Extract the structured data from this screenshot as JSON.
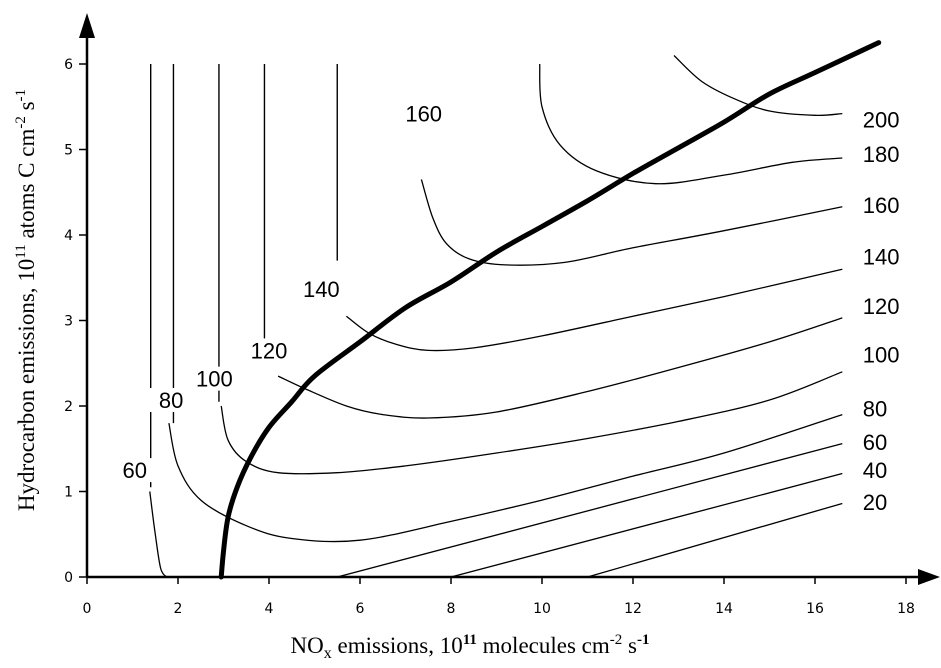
{
  "chart_data": {
    "type": "contour",
    "xlabel": {
      "prefix": "NO",
      "sub": "x",
      "middle": " emissions, 10",
      "exp": "11",
      "suffix": " molecules cm",
      "exp2": "-2",
      "tail": " s",
      "exp3": "-1"
    },
    "ylabel": {
      "prefix": "Hydrocarbon emissions, 10",
      "exp": "11",
      "middle": " atoms C cm",
      "exp2": "-2",
      "tail": " s",
      "exp3": "-1"
    },
    "xlim": [
      0,
      18
    ],
    "ylim": [
      0,
      6
    ],
    "x_ticks": [
      "0",
      "2",
      "4",
      "6",
      "8",
      "10",
      "12",
      "14",
      "16",
      "18"
    ],
    "y_ticks": [
      "0",
      "1",
      "2",
      "3",
      "4",
      "5",
      "6"
    ],
    "contours": [
      {
        "level": "20",
        "points": [
          [
            11,
            0
          ],
          [
            16.6,
            0.86
          ]
        ]
      },
      {
        "level": "40",
        "points": [
          [
            8,
            0
          ],
          [
            16.6,
            1.21
          ]
        ]
      },
      {
        "level": "60",
        "points": [
          [
            5.5,
            0
          ],
          [
            16.6,
            1.56
          ]
        ]
      },
      {
        "level": "60",
        "points": [
          [
            1.38,
            1.0
          ],
          [
            1.5,
            0.5
          ],
          [
            1.62,
            0.1
          ],
          [
            1.75,
            0
          ]
        ]
      },
      {
        "level": "80",
        "points": [
          [
            1.8,
            1.8
          ],
          [
            2.0,
            1.3
          ],
          [
            2.5,
            0.9
          ],
          [
            3.5,
            0.6
          ],
          [
            4.5,
            0.45
          ],
          [
            6,
            0.43
          ],
          [
            8,
            0.65
          ],
          [
            10,
            0.9
          ],
          [
            12,
            1.18
          ],
          [
            14,
            1.45
          ],
          [
            16.6,
            1.9
          ]
        ]
      },
      {
        "level": "100",
        "points": [
          [
            2.95,
            2.0
          ],
          [
            3.1,
            1.6
          ],
          [
            3.5,
            1.35
          ],
          [
            4.2,
            1.22
          ],
          [
            5.5,
            1.22
          ],
          [
            7,
            1.3
          ],
          [
            9,
            1.45
          ],
          [
            11,
            1.62
          ],
          [
            13,
            1.82
          ],
          [
            15,
            2.07
          ],
          [
            16.6,
            2.4
          ]
        ]
      },
      {
        "level": "120",
        "points": [
          [
            4.2,
            2.35
          ],
          [
            4.8,
            2.2
          ],
          [
            5.7,
            2.0
          ],
          [
            6.5,
            1.9
          ],
          [
            7.5,
            1.86
          ],
          [
            9,
            1.93
          ],
          [
            11,
            2.17
          ],
          [
            13,
            2.45
          ],
          [
            15,
            2.75
          ],
          [
            16.6,
            3.03
          ]
        ]
      },
      {
        "level": "140",
        "points": [
          [
            5.7,
            3.05
          ],
          [
            6.2,
            2.85
          ],
          [
            6.8,
            2.72
          ],
          [
            7.5,
            2.65
          ],
          [
            8.5,
            2.68
          ],
          [
            10,
            2.82
          ],
          [
            12,
            3.05
          ],
          [
            14,
            3.28
          ],
          [
            16.6,
            3.6
          ]
        ]
      },
      {
        "level": "160",
        "points": [
          [
            7.35,
            4.65
          ],
          [
            7.6,
            4.2
          ],
          [
            7.9,
            3.9
          ],
          [
            8.4,
            3.72
          ],
          [
            9.2,
            3.65
          ],
          [
            10.5,
            3.68
          ],
          [
            12,
            3.85
          ],
          [
            14,
            4.05
          ],
          [
            16.6,
            4.33
          ]
        ]
      },
      {
        "level": "180",
        "points": [
          [
            9.95,
            6.0
          ],
          [
            10.0,
            5.5
          ],
          [
            10.4,
            5.05
          ],
          [
            11.2,
            4.75
          ],
          [
            12.5,
            4.6
          ],
          [
            14,
            4.7
          ],
          [
            15.5,
            4.85
          ],
          [
            16.6,
            4.9
          ]
        ]
      },
      {
        "level": "200",
        "points": [
          [
            12.9,
            6.1
          ],
          [
            13.5,
            5.8
          ],
          [
            14.2,
            5.6
          ],
          [
            15,
            5.45
          ],
          [
            16,
            5.4
          ],
          [
            16.6,
            5.42
          ]
        ]
      }
    ],
    "vertical_contours": [
      {
        "x": 1.4,
        "y_top": 6.0,
        "y_bottom": 1.05
      },
      {
        "x": 1.9,
        "y_top": 6.0,
        "y_bottom": 1.8
      },
      {
        "x": 2.9,
        "y_top": 6.0,
        "y_bottom": 2.05
      },
      {
        "x": 3.9,
        "y_top": 6.0,
        "y_bottom": 2.65
      },
      {
        "x": 5.5,
        "y_top": 6.0,
        "y_bottom": 3.7
      }
    ],
    "ridge_line": [
      [
        2.95,
        0
      ],
      [
        3.0,
        0.3
      ],
      [
        3.1,
        0.7
      ],
      [
        3.3,
        1.05
      ],
      [
        3.6,
        1.4
      ],
      [
        4.0,
        1.75
      ],
      [
        4.5,
        2.05
      ],
      [
        5.0,
        2.35
      ],
      [
        6.0,
        2.75
      ],
      [
        7.0,
        3.15
      ],
      [
        8.0,
        3.45
      ],
      [
        9.0,
        3.8
      ],
      [
        10.0,
        4.1
      ],
      [
        11.0,
        4.4
      ],
      [
        12.0,
        4.72
      ],
      [
        13.0,
        5.02
      ],
      [
        14.0,
        5.32
      ],
      [
        15.0,
        5.65
      ],
      [
        16.0,
        5.9
      ],
      [
        17.0,
        6.15
      ],
      [
        17.4,
        6.25
      ]
    ],
    "inline_labels": [
      {
        "text": "160",
        "x": 7.4,
        "y": 5.35
      },
      {
        "text": "140",
        "x": 5.15,
        "y": 3.3
      },
      {
        "text": "120",
        "x": 4.0,
        "y": 2.58
      },
      {
        "text": "100",
        "x": 2.8,
        "y": 2.25
      },
      {
        "text": "80",
        "x": 1.85,
        "y": 2.0
      },
      {
        "text": "60",
        "x": 1.05,
        "y": 1.18
      }
    ],
    "right_labels": [
      {
        "text": "200",
        "y": 5.35
      },
      {
        "text": "180",
        "y": 4.95
      },
      {
        "text": "160",
        "y": 4.35
      },
      {
        "text": "140",
        "y": 3.75
      },
      {
        "text": "120",
        "y": 3.17
      },
      {
        "text": "100",
        "y": 2.6
      },
      {
        "text": "80",
        "y": 1.97
      },
      {
        "text": "60",
        "y": 1.58
      },
      {
        "text": "40",
        "y": 1.25
      },
      {
        "text": "20",
        "y": 0.88
      }
    ]
  }
}
